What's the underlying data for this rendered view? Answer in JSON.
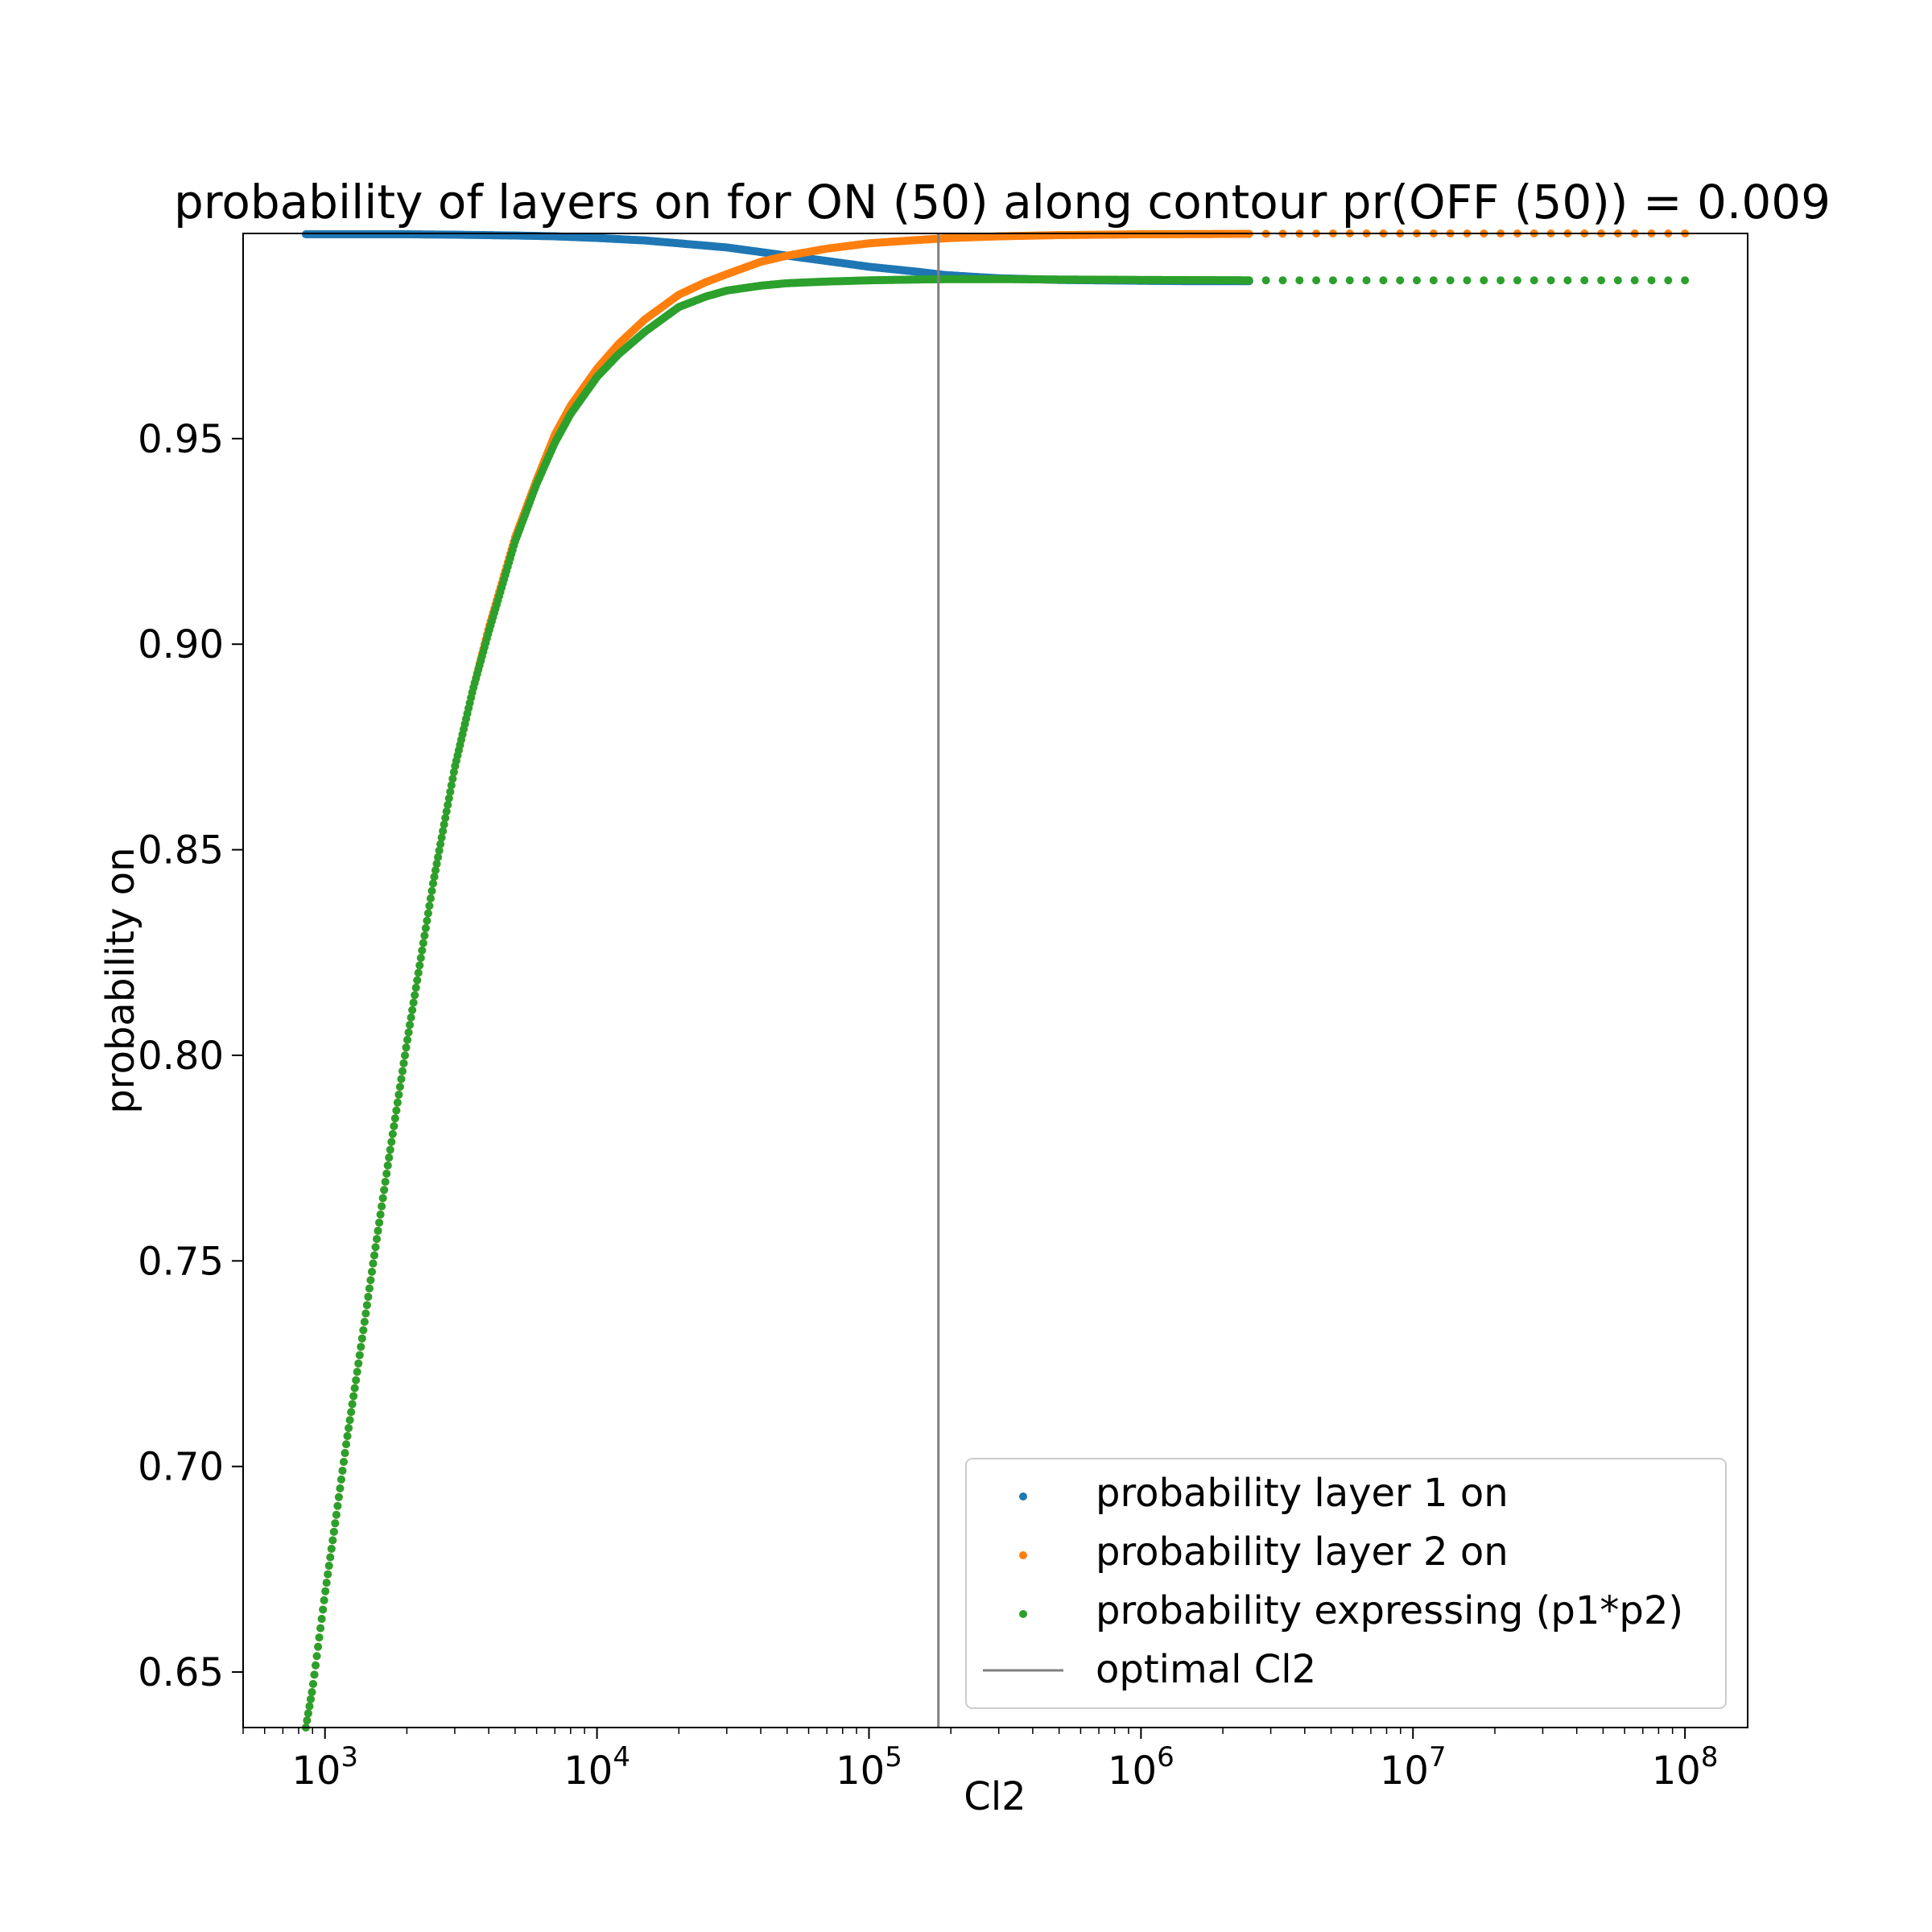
{
  "chart_data": {
    "type": "scatter",
    "title": "probability of layers on for ON (50) along contour pr(OFF (50)) = 0.009",
    "xlabel": "Cl2",
    "ylabel": "probability on",
    "x_scale": "log",
    "xlim": [
      500,
      170000000
    ],
    "ylim": [
      0.6365,
      0.9999
    ],
    "x_tick_base": "10",
    "x_ticks": [
      {
        "value": 1000,
        "exponent": "3"
      },
      {
        "value": 10000,
        "exponent": "4"
      },
      {
        "value": 100000,
        "exponent": "5"
      },
      {
        "value": 1000000,
        "exponent": "6"
      },
      {
        "value": 10000000,
        "exponent": "7"
      },
      {
        "value": 100000000,
        "exponent": "8"
      }
    ],
    "y_ticks": [
      {
        "value": 0.65,
        "label": "0.65"
      },
      {
        "value": 0.7,
        "label": "0.70"
      },
      {
        "value": 0.75,
        "label": "0.75"
      },
      {
        "value": 0.8,
        "label": "0.80"
      },
      {
        "value": 0.85,
        "label": "0.85"
      },
      {
        "value": 0.9,
        "label": "0.90"
      },
      {
        "value": 0.95,
        "label": "0.95"
      }
    ],
    "grid": false,
    "legend_position": "lower-right",
    "series": [
      {
        "name": "probability layer 1 on",
        "color": "#1f77b4",
        "x": [
          850,
          1000,
          2000,
          3000,
          5000,
          7000,
          10000,
          15000,
          20000,
          30000,
          50000,
          70000,
          100000,
          150000,
          190000,
          250000,
          300000,
          500000,
          700000,
          1000000,
          1500000,
          2500000
        ],
        "y": [
          0.9997,
          0.9997,
          0.9997,
          0.9996,
          0.9994,
          0.9992,
          0.9988,
          0.9982,
          0.9975,
          0.9965,
          0.9945,
          0.9932,
          0.9918,
          0.9906,
          0.9898,
          0.9893,
          0.989,
          0.9886,
          0.9885,
          0.9884,
          0.9883,
          0.9883
        ]
      },
      {
        "name": "probability layer 2 on",
        "color": "#ff7f0e",
        "x": [
          850,
          900,
          1000,
          1100,
          1200,
          1300,
          1500,
          1700,
          2000,
          2500,
          3000,
          3500,
          4000,
          5000,
          6000,
          7000,
          8000,
          10000,
          12000,
          15000,
          20000,
          25000,
          30000,
          40000,
          50000,
          70000,
          100000,
          150000,
          200000,
          300000,
          500000,
          1000000,
          2500000,
          5000000,
          10000000,
          20000000,
          50000000,
          100000000
        ],
        "y": [
          0.6365,
          0.646,
          0.669,
          0.688,
          0.706,
          0.721,
          0.749,
          0.773,
          0.803,
          0.842,
          0.87,
          0.889,
          0.904,
          0.926,
          0.94,
          0.951,
          0.958,
          0.967,
          0.973,
          0.979,
          0.985,
          0.988,
          0.99,
          0.993,
          0.9945,
          0.9962,
          0.9975,
          0.9983,
          0.9988,
          0.9992,
          0.9995,
          0.9997,
          0.9998,
          0.9999,
          0.9999,
          0.9999,
          0.9999,
          0.9999
        ]
      },
      {
        "name": "probability expressing (p1*p2)",
        "color": "#2ca02c",
        "x": [
          850,
          900,
          1000,
          1100,
          1200,
          1300,
          1500,
          1700,
          2000,
          2500,
          3000,
          3500,
          4000,
          5000,
          6000,
          7000,
          8000,
          10000,
          12000,
          15000,
          20000,
          25000,
          30000,
          40000,
          50000,
          70000,
          100000,
          150000,
          200000,
          300000,
          500000,
          1000000,
          2500000,
          5000000,
          10000000,
          20000000,
          50000000,
          100000000
        ],
        "y": [
          0.6365,
          0.646,
          0.669,
          0.688,
          0.706,
          0.721,
          0.749,
          0.773,
          0.803,
          0.842,
          0.87,
          0.889,
          0.903,
          0.925,
          0.939,
          0.949,
          0.956,
          0.965,
          0.9705,
          0.976,
          0.982,
          0.9845,
          0.986,
          0.9872,
          0.9878,
          0.9882,
          0.9885,
          0.9887,
          0.9888,
          0.9888,
          0.9887,
          0.9886,
          0.9885,
          0.9885,
          0.9885,
          0.9885,
          0.9885,
          0.9885
        ]
      }
    ],
    "vline": {
      "name": "optimal Cl2",
      "x": 180000,
      "color": "#808080"
    }
  }
}
